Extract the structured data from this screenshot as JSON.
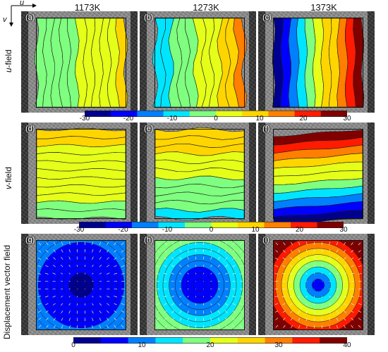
{
  "axis_labels": {
    "u": "u",
    "v": "v"
  },
  "columns": [
    "1173K",
    "1273K",
    "1373K"
  ],
  "rows": [
    {
      "name": "u-field",
      "italic": "u",
      "plain": "-field"
    },
    {
      "name": "v-field",
      "italic": "v",
      "plain": "-field"
    },
    {
      "name": "displacement",
      "italic": "",
      "plain": "Displacement vector field"
    }
  ],
  "panel_tags": [
    "(a)",
    "(b)",
    "(c)",
    "(d)",
    "(e)",
    "(f)",
    "(g)",
    "(h)",
    "(i)"
  ],
  "colorbars": [
    {
      "ticks": [
        "-30",
        "-20",
        "-10",
        "0",
        "10",
        "20",
        "30"
      ],
      "min": -30,
      "max": 30
    },
    {
      "ticks": [
        "-30",
        "-20",
        "-10",
        "0",
        "10",
        "20",
        "30"
      ],
      "min": -30,
      "max": 30
    },
    {
      "ticks": [
        "0",
        "10",
        "20",
        "30",
        "40"
      ],
      "min": 0,
      "max": 40
    }
  ],
  "colors": {
    "jet": [
      "#00008f",
      "#0000ff",
      "#0080ff",
      "#00e5ff",
      "#7fff7f",
      "#e5ff19",
      "#ffd500",
      "#ff7f00",
      "#ff1a00",
      "#800000"
    ]
  }
}
